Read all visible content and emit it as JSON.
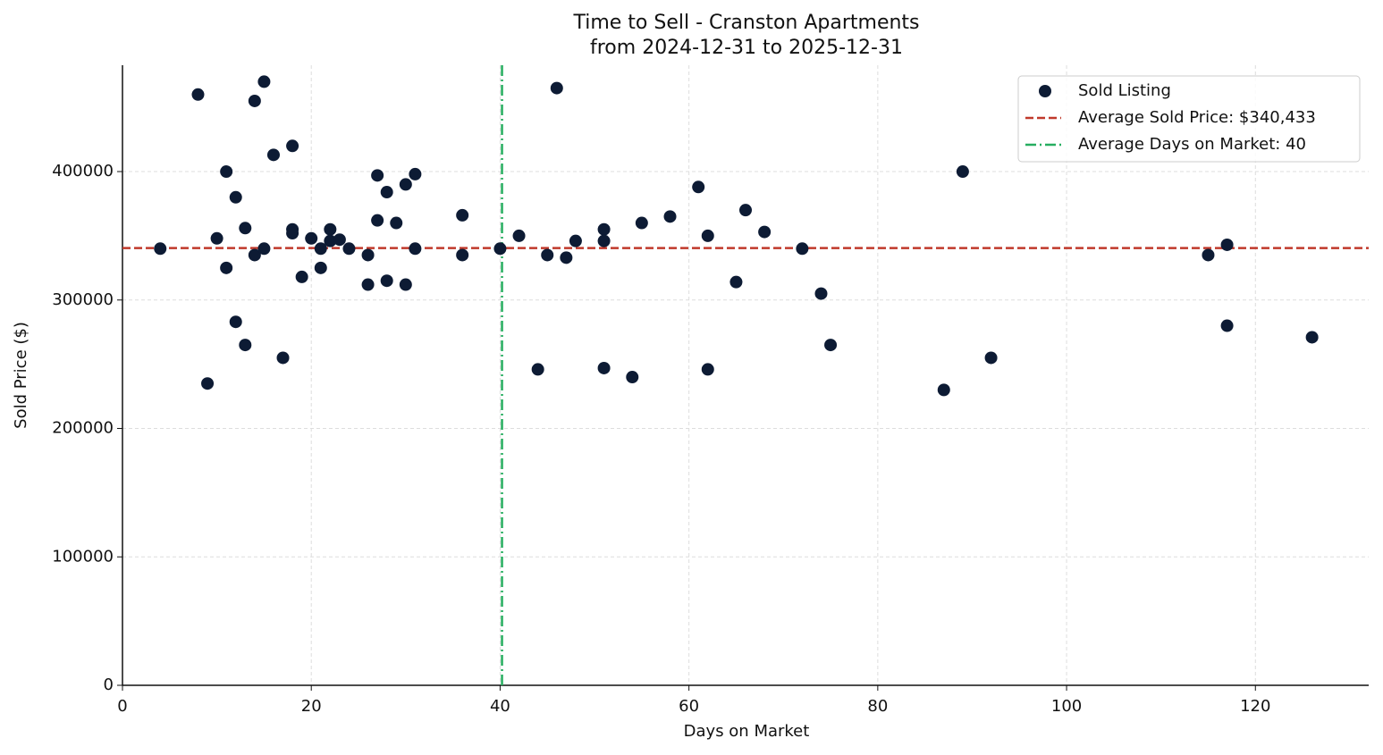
{
  "chart_data": {
    "type": "scatter",
    "title": "Time to Sell - Cranston Apartments",
    "subtitle": "from 2024-12-31 to 2025-12-31",
    "x_label": "Days on Market",
    "y_label": "Sold Price ($)",
    "xlim": [
      0,
      132
    ],
    "xticks": [
      0,
      20,
      40,
      60,
      80,
      100,
      120
    ],
    "ylim": [
      0,
      482800
    ],
    "yticks": [
      0,
      100000,
      200000,
      300000,
      400000
    ],
    "grid": true,
    "legend": "upper right",
    "series": [
      {
        "name": "Sold Listing",
        "color": "#0d1b34",
        "x": [
          4,
          8,
          9,
          10,
          11,
          11,
          12,
          12,
          13,
          13,
          14,
          14,
          15,
          15,
          16,
          17,
          18,
          18,
          18,
          19,
          20,
          21,
          21,
          22,
          22,
          23,
          24,
          26,
          26,
          27,
          27,
          28,
          28,
          29,
          30,
          30,
          31,
          31,
          36,
          36,
          40,
          42,
          44,
          45,
          46,
          47,
          48,
          51,
          51,
          51,
          54,
          55,
          58,
          61,
          62,
          62,
          65,
          66,
          68,
          72,
          74,
          75,
          87,
          89,
          92,
          115,
          117,
          117,
          126
        ],
        "values": [
          340000,
          460000,
          235000,
          348000,
          400000,
          325000,
          380000,
          283000,
          356000,
          265000,
          455000,
          335000,
          470000,
          340000,
          413000,
          255000,
          420000,
          355000,
          352000,
          318000,
          348000,
          340000,
          325000,
          355000,
          346000,
          347000,
          340000,
          335000,
          312000,
          397000,
          362000,
          384000,
          315000,
          360000,
          390000,
          312000,
          398000,
          340000,
          366000,
          335000,
          340000,
          350000,
          246000,
          335000,
          465000,
          333000,
          346000,
          355000,
          346000,
          247000,
          240000,
          360000,
          365000,
          388000,
          350000,
          246000,
          314000,
          370000,
          353000,
          340000,
          305000,
          265000,
          230000,
          400000,
          255000,
          335000,
          343000,
          280000,
          271000
        ]
      }
    ],
    "hline": {
      "name": "Average Sold Price: $340,433",
      "value": 340433,
      "color": "#c0392b"
    },
    "vline": {
      "name": "Average Days on Market: 40",
      "value": 40.2,
      "color": "#27ae60"
    }
  }
}
